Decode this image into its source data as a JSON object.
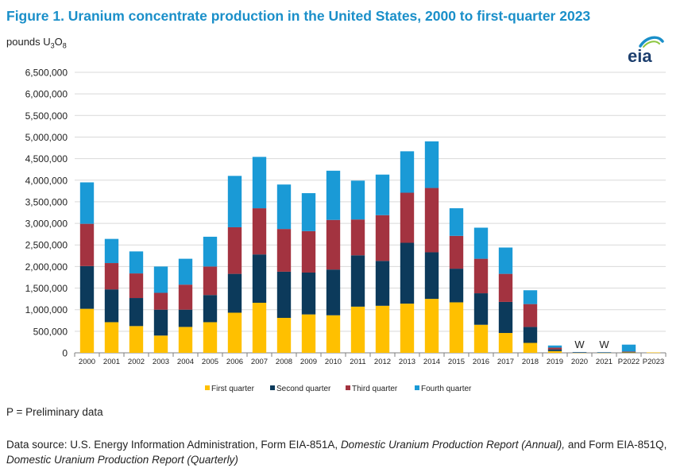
{
  "header": {
    "title": "Figure 1. Uranium concentrate production in the United States, 2000 to first-quarter 2023",
    "units_prefix": "pounds U",
    "units_sub1": "3",
    "units_mid": "O",
    "units_sub2": "8"
  },
  "logo": {
    "text": "eia",
    "icon": "eia-logo"
  },
  "footer": {
    "note": "P = Preliminary data",
    "source_1": "Data source: U.S. Energy Information Administration, Form EIA-851A, ",
    "source_2": "Domestic Uranium Production Report (Annual),",
    "source_3": " and Form EIA-851Q, ",
    "source_4": "Domestic Uranium Production Report (Quarterly)"
  },
  "chart_data": {
    "type": "bar",
    "stacked": true,
    "ylabel": "pounds U3O8",
    "ylim": [
      0,
      6500000
    ],
    "yticks": [
      "0",
      "500,000",
      "1,000,000",
      "1,500,000",
      "2,000,000",
      "2,500,000",
      "3,000,000",
      "3,500,000",
      "4,000,000",
      "4,500,000",
      "5,000,000",
      "5,500,000",
      "6,000,000",
      "6,500,000"
    ],
    "grid": true,
    "legend": "bottom",
    "categories": [
      "2000",
      "2001",
      "2002",
      "2003",
      "2004",
      "2005",
      "2006",
      "2007",
      "2008",
      "2009",
      "2010",
      "2011",
      "2012",
      "2013",
      "2014",
      "2015",
      "2016",
      "2017",
      "2018",
      "2019",
      "2020",
      "2021",
      "P2022",
      "P2023"
    ],
    "withheld_labels": [
      "",
      "",
      "",
      "",
      "",
      "",
      "",
      "",
      "",
      "",
      "",
      "",
      "",
      "",
      "",
      "",
      "",
      "",
      "",
      "",
      "W",
      "W",
      "",
      ""
    ],
    "series": [
      {
        "name": "First quarter",
        "color": "#ffc000",
        "values": [
          1020000,
          710000,
          620000,
          400000,
          600000,
          710000,
          930000,
          1160000,
          810000,
          890000,
          870000,
          1070000,
          1090000,
          1140000,
          1250000,
          1170000,
          650000,
          460000,
          230000,
          40000,
          5000,
          5000,
          10000,
          9000
        ]
      },
      {
        "name": "Second quarter",
        "color": "#0c3a5b",
        "values": [
          990000,
          760000,
          650000,
          600000,
          400000,
          630000,
          900000,
          1120000,
          1070000,
          970000,
          1060000,
          1190000,
          1040000,
          1410000,
          1080000,
          780000,
          730000,
          720000,
          370000,
          40000,
          5000,
          4000,
          10000,
          0
        ]
      },
      {
        "name": "Third quarter",
        "color": "#a33340",
        "values": [
          980000,
          610000,
          570000,
          390000,
          580000,
          660000,
          1080000,
          1070000,
          990000,
          960000,
          1150000,
          830000,
          1060000,
          1160000,
          1490000,
          760000,
          800000,
          650000,
          530000,
          40000,
          4000,
          3000,
          10000,
          0
        ]
      },
      {
        "name": "Fourth quarter",
        "color": "#1a9ad6",
        "values": [
          960000,
          560000,
          510000,
          610000,
          600000,
          690000,
          1190000,
          1190000,
          1030000,
          880000,
          1140000,
          900000,
          940000,
          960000,
          1080000,
          640000,
          720000,
          610000,
          320000,
          50000,
          5000,
          3000,
          160000,
          0
        ]
      }
    ]
  }
}
